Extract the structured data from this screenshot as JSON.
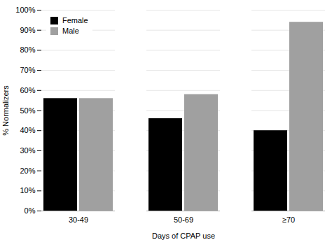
{
  "chart_data": {
    "type": "bar",
    "categories": [
      "30-49",
      "50-69",
      "≥70"
    ],
    "series": [
      {
        "name": "Female",
        "color": "#000000",
        "values": [
          0.56,
          0.46,
          0.4
        ]
      },
      {
        "name": "Male",
        "color": "#a0a0a0",
        "values": [
          0.56,
          0.58,
          0.94
        ]
      }
    ],
    "xlabel": "Days of CPAP use",
    "ylabel": "% Normalizers",
    "ylim": [
      0,
      1.0
    ],
    "yticks": [
      {
        "value": 0.0,
        "label": "0%"
      },
      {
        "value": 0.1,
        "label": "10%"
      },
      {
        "value": 0.2,
        "label": "20%"
      },
      {
        "value": 0.3,
        "label": "30%"
      },
      {
        "value": 0.4,
        "label": "40%"
      },
      {
        "value": 0.5,
        "label": "50%"
      },
      {
        "value": 0.6,
        "label": "60%"
      },
      {
        "value": 0.7,
        "label": "70%"
      },
      {
        "value": 0.8,
        "label": "80%"
      },
      {
        "value": 0.9,
        "label": "90%"
      },
      {
        "value": 1.0,
        "label": "100%"
      }
    ],
    "grid": true,
    "legend": "upper left"
  }
}
